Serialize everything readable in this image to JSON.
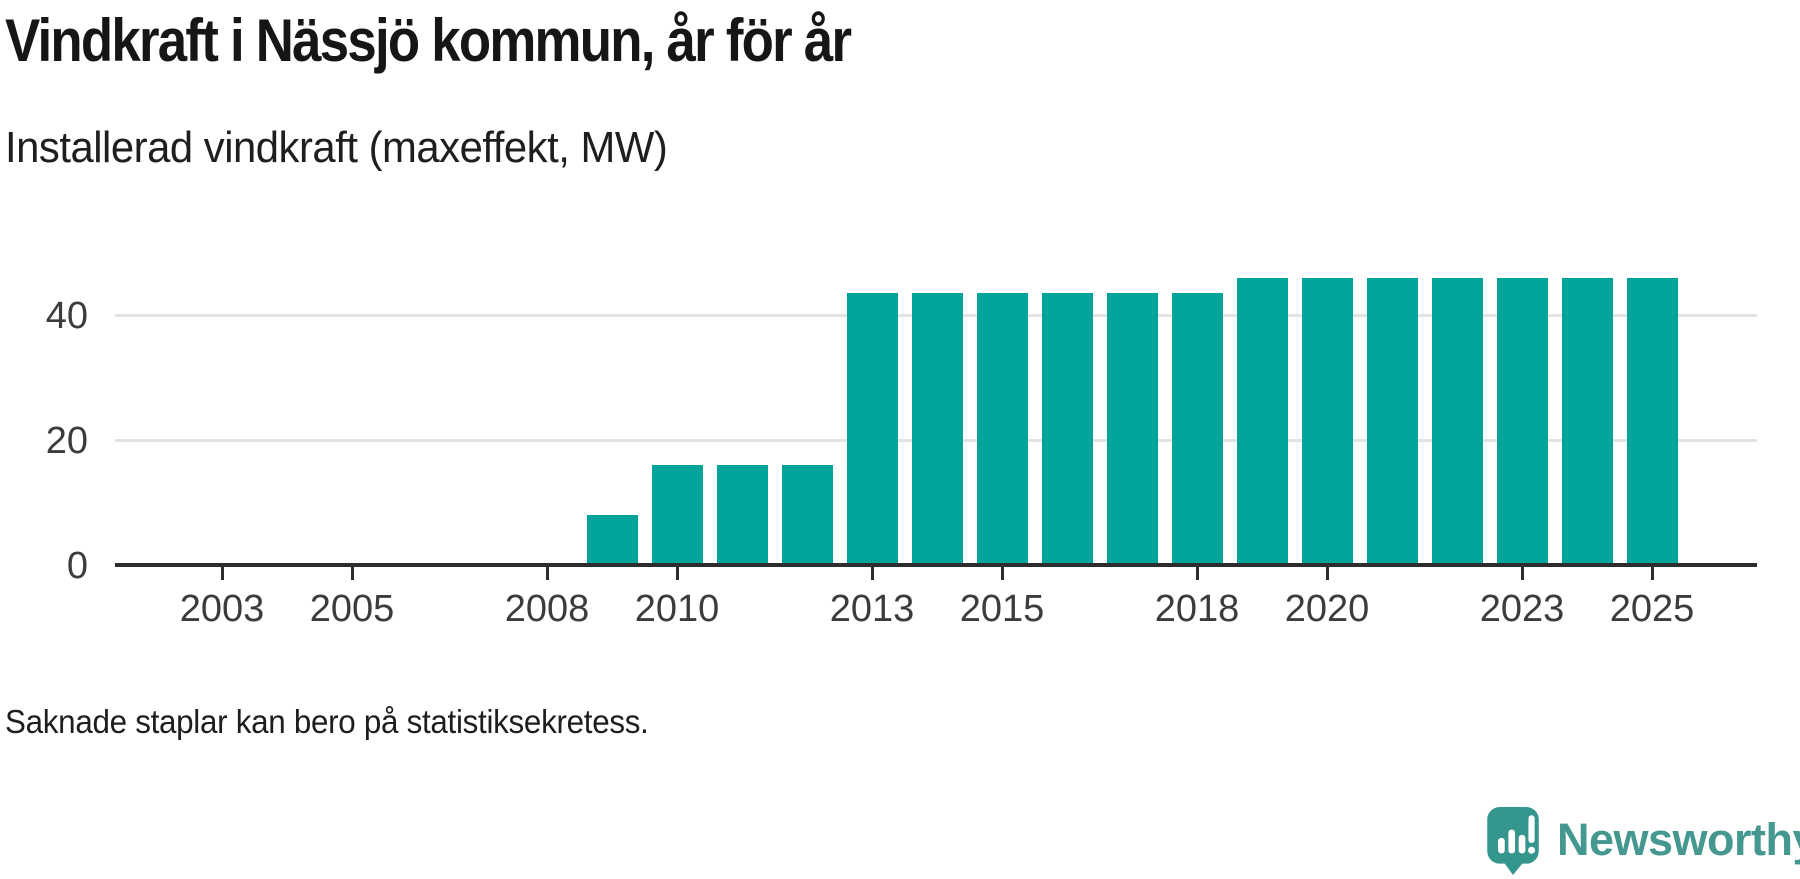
{
  "header": {
    "title": "Vindkraft i Nässjö kommun, år för år",
    "subtitle": "Installerad vindkraft (maxeffekt, MW)"
  },
  "chart_data": {
    "type": "bar",
    "title": "Vindkraft i Nässjö kommun, år för år",
    "subtitle": "Installerad vindkraft (maxeffekt, MW)",
    "ylabel": "Installerad vindkraft (maxeffekt, MW)",
    "xlabel": "",
    "x": [
      2009,
      2010,
      2011,
      2012,
      2013,
      2014,
      2015,
      2016,
      2017,
      2018,
      2019,
      2020,
      2021,
      2022,
      2023,
      2024,
      2025
    ],
    "values": [
      8,
      16,
      16,
      16,
      43.5,
      43.5,
      43.5,
      43.5,
      43.5,
      43.5,
      46,
      46,
      46,
      46,
      46,
      46,
      46
    ],
    "x_tick_labels": [
      "2003",
      "2005",
      "2008",
      "2010",
      "2013",
      "2015",
      "2018",
      "2020",
      "2023",
      "2025"
    ],
    "y_ticks": [
      0,
      20,
      40
    ],
    "ylim": [
      0,
      52
    ],
    "xlim": [
      2001.4,
      2026.6
    ],
    "grid": "horizontal-only",
    "legend": "none",
    "bar_color": "#00a49b",
    "axis_color": "#2d2d2d",
    "gridline_color": "#e3e3e3",
    "tick_label_color": "#3c3c3c"
  },
  "footer": {
    "note": "Saknade staplar kan bero på statistiksekretess."
  },
  "branding": {
    "logo_text": "Newsworthy",
    "logo_text_color": "#45988f",
    "bubble_color": "#35968e"
  }
}
